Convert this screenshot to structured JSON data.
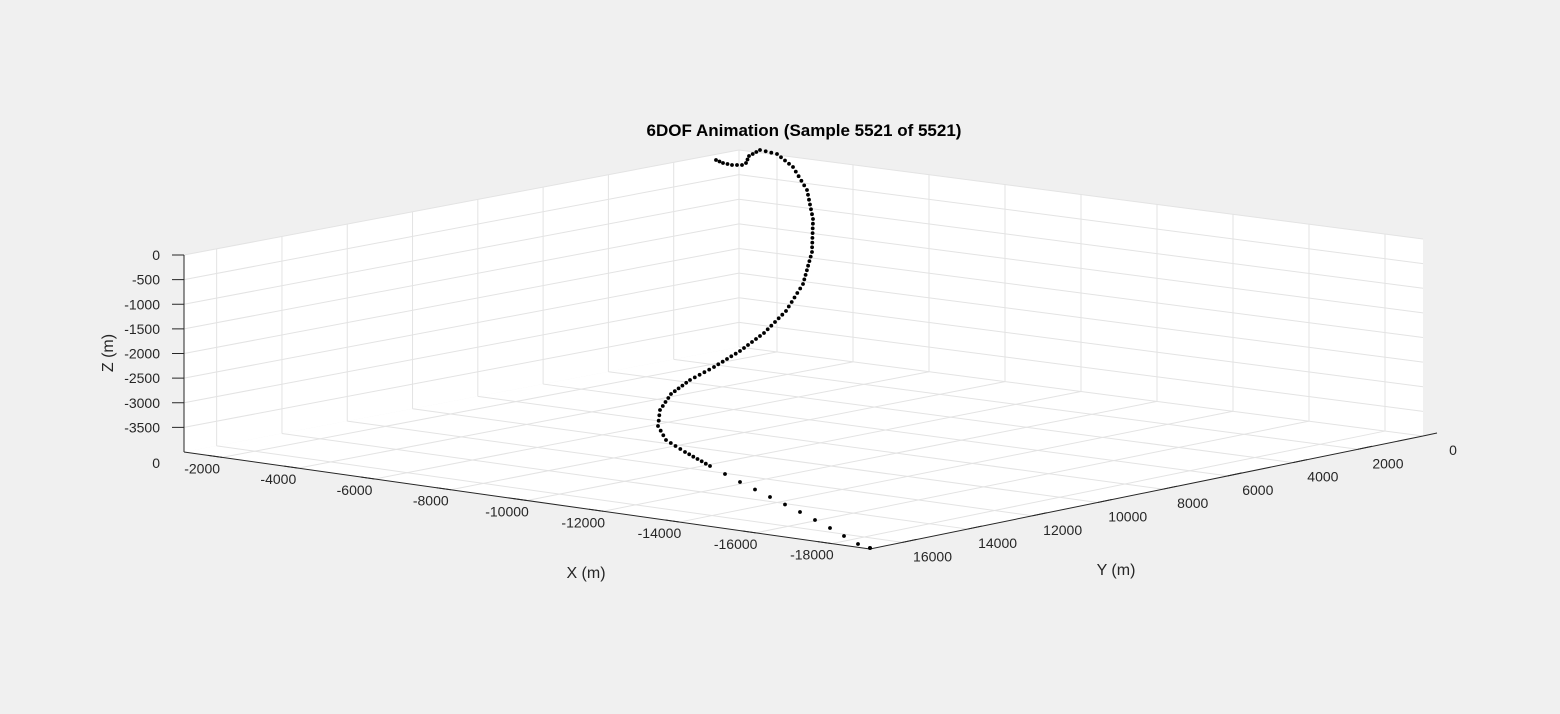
{
  "chart_data": {
    "type": "scatter",
    "title": "6DOF Animation (Sample 5521 of 5521)",
    "xlabel": "X (m)",
    "ylabel": "Y (m)",
    "zlabel": "Z (m)",
    "xlim": [
      -19000,
      -1000
    ],
    "ylim": [
      0,
      17000
    ],
    "zlim": [
      -4000,
      0
    ],
    "x_ticks": [
      "-2000",
      "-4000",
      "-6000",
      "-8000",
      "-10000",
      "-12000",
      "-14000",
      "-16000",
      "-18000"
    ],
    "y_ticks": [
      "0",
      "2000",
      "4000",
      "6000",
      "8000",
      "10000",
      "12000",
      "14000",
      "16000"
    ],
    "z_ticks": [
      "0",
      "-500",
      "-1000",
      "-1500",
      "-2000",
      "-2500",
      "-3000",
      "-3500"
    ],
    "z_base_label": "0",
    "grid": true,
    "marker_color": "#000000",
    "background_color": "#f0f0f0",
    "axes_color": "#ffffff",
    "trajectory_points_screen_normalized_note": ""
  }
}
